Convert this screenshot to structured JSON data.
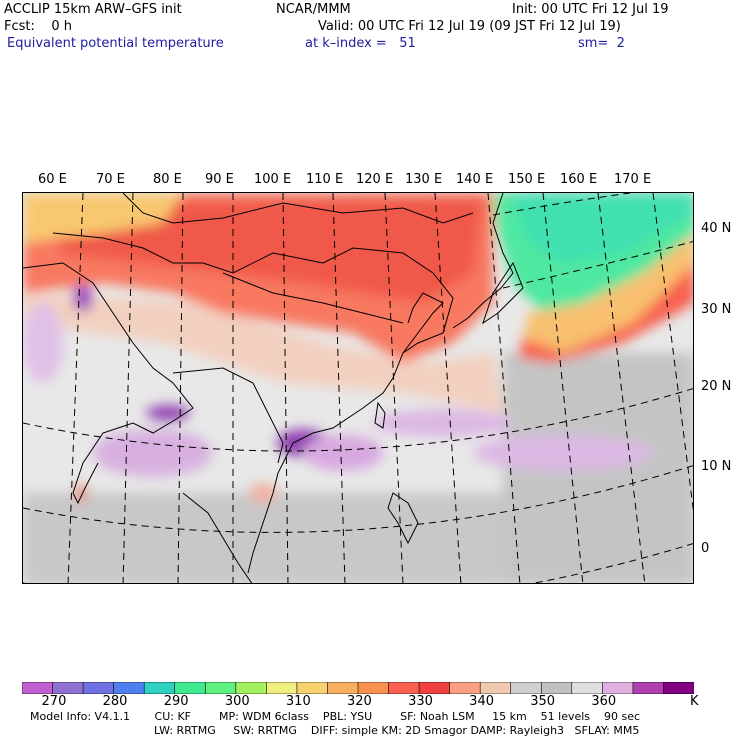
{
  "header": {
    "model": "ACCLIP 15km ARW–GFS init",
    "center": "NCAR/MMM",
    "init": "Init: 00 UTC Fri 12 Jul 19",
    "fcst": "Fcst:    0 h",
    "valid": "Valid: 00 UTC Fri 12 Jul 19 (09 JST Fri 12 Jul 19)",
    "field": "Equivalent potential temperature",
    "level": "at k–index =   51",
    "smooth": "sm=  2"
  },
  "map": {
    "lon_labels": [
      "60 E",
      "70 E",
      "80 E",
      "90 E",
      "100 E",
      "110 E",
      "120 E",
      "130 E",
      "140 E",
      "150 E",
      "160 E",
      "170 E"
    ],
    "lat_labels": [
      "40 N",
      "30 N",
      "20 N",
      "10 N",
      "0"
    ]
  },
  "colorbar": {
    "colors": [
      "#c060d0",
      "#9070d0",
      "#7070e0",
      "#5080f0",
      "#30d0c0",
      "#40e890",
      "#60f080",
      "#a0f060",
      "#f0f080",
      "#f8d070",
      "#f8b060",
      "#f89050",
      "#f86050",
      "#f04040",
      "#f8a080",
      "#f0c8b0",
      "#d0d0d0",
      "#c0c0c0",
      "#e0e0e0",
      "#e0b0e0",
      "#b040b0",
      "#800080"
    ],
    "labels": [
      "270",
      "280",
      "290",
      "300",
      "310",
      "320",
      "330",
      "340",
      "350",
      "360",
      "K"
    ]
  },
  "footer": {
    "line1": "Model Info: V4.1.1       CU: KF        MP: WDM 6class    PBL: YSU        SF: Noah LSM     15 km    51 levels    90 sec",
    "line2": "LW: RRTMG     SW: RRTMG    DIFF: simple KM: 2D Smagor DAMP: Rayleigh3   SFLAY: MM5"
  }
}
